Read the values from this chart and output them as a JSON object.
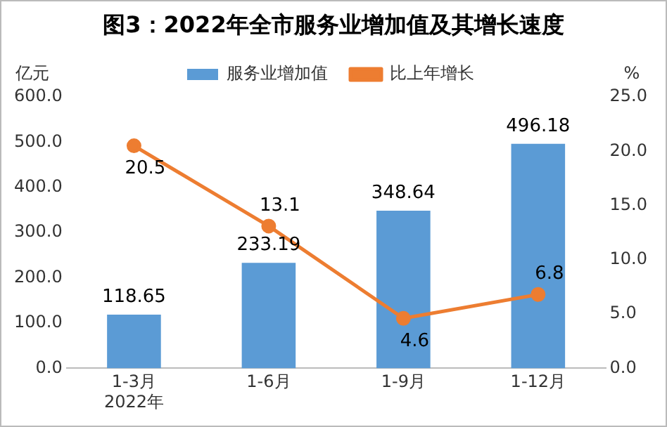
{
  "chart_data": {
    "type": "bar",
    "title": "图3：2022年全市服务业增加值及其增长速度",
    "ylabel": "亿元",
    "y2label": "%",
    "categories": [
      "1-3月\n2022年",
      "1-6月",
      "1-9月",
      "1-12月"
    ],
    "series": [
      {
        "name": "服务业增加值",
        "color": "#5b9bd5",
        "values": [
          118.65,
          233.19,
          348.64,
          496.18
        ]
      },
      {
        "name": "比上年增长",
        "type": "line",
        "axis": "y2",
        "color": "#ed7d31",
        "marker": "circle",
        "values": [
          20.5,
          13.1,
          4.6,
          6.8
        ]
      }
    ],
    "ylim": [
      0,
      600
    ],
    "yticks": [
      {
        "value": 0,
        "label": "0.0"
      },
      {
        "value": 100,
        "label": "100.0"
      },
      {
        "value": 200,
        "label": "200.0"
      },
      {
        "value": 300,
        "label": "300.0"
      },
      {
        "value": 400,
        "label": "400.0"
      },
      {
        "value": 500,
        "label": "500.0"
      },
      {
        "value": 600,
        "label": "600.0"
      }
    ],
    "y2lim": [
      0,
      25
    ],
    "y2ticks": [
      {
        "value": 0,
        "label": "0.0"
      },
      {
        "value": 5,
        "label": "5.0"
      },
      {
        "value": 10,
        "label": "10.0"
      },
      {
        "value": 15,
        "label": "15.0"
      },
      {
        "value": 20,
        "label": "20.0"
      },
      {
        "value": 25,
        "label": "25.0"
      }
    ],
    "grid": false,
    "legend": "top",
    "data_labels": true
  }
}
